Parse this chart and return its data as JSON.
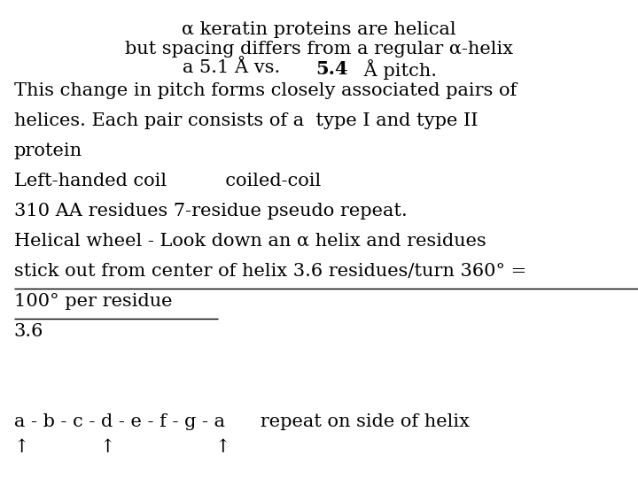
{
  "background_color": "#ffffff",
  "title_line1": "α keratin proteins are helical",
  "title_line2": "but spacing differs from a regular α-helix",
  "title_line3_normal": "a 5.1 Å vs. ",
  "title_line3_bold": "5.4",
  "title_line3_end": " Å pitch.",
  "body_lines": [
    "This change in pitch forms closely associated pairs of",
    "helices. Each pair consists of a  type I and type II",
    "protein",
    "Left-handed coil          coiled-coil",
    "310 AA residues 7-residue pseudo repeat.",
    "Helical wheel - Look down an α helix and residues",
    "stick out from center of helix 3.6 residues/turn 360° =",
    "100° per residue",
    "3.6"
  ],
  "underline_indices": [
    6,
    7
  ],
  "bottom_line1": "a - b - c - d - e - f - g - a      repeat on side of helix",
  "bottom_line2": "↑            ↑                 ↑",
  "font_size": 15,
  "font_family": "serif"
}
